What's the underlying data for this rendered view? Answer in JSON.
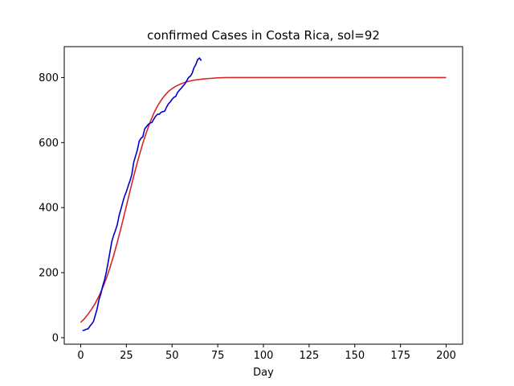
{
  "chart_data": {
    "type": "line",
    "title": "confirmed Cases in Costa Rica, sol=92",
    "xlabel": "Day",
    "ylabel": "",
    "xlim": [
      -9,
      209
    ],
    "ylim": [
      -20,
      895
    ],
    "xticks": [
      0,
      25,
      50,
      75,
      100,
      125,
      150,
      175,
      200
    ],
    "yticks": [
      0,
      200,
      400,
      600,
      800
    ],
    "grid": false,
    "series": [
      {
        "color": "#d62728",
        "x": [
          0,
          2,
          4,
          6,
          8,
          10,
          12,
          14,
          16,
          18,
          20,
          22,
          24,
          26,
          28,
          30,
          32,
          34,
          36,
          38,
          40,
          42,
          44,
          46,
          48,
          50,
          52,
          55,
          58,
          62,
          66,
          70,
          75,
          80,
          90,
          100,
          120,
          150,
          175,
          200
        ],
        "values": [
          47,
          58,
          72,
          88,
          106,
          128,
          153,
          182,
          215,
          252,
          293,
          336,
          382,
          428,
          474,
          518,
          559,
          598,
          632,
          663,
          690,
          712,
          730,
          745,
          757,
          766,
          773,
          781,
          787,
          792,
          795,
          797,
          799,
          800,
          800,
          800,
          800,
          800,
          800,
          800
        ]
      },
      {
        "color": "#0000cc",
        "x": [
          1,
          2,
          3,
          4,
          5,
          6,
          7,
          8,
          9,
          10,
          11,
          12,
          13,
          14,
          15,
          16,
          17,
          18,
          19,
          20,
          21,
          22,
          23,
          24,
          25,
          26,
          27,
          28,
          29,
          30,
          31,
          32,
          33,
          34,
          35,
          36,
          37,
          38,
          39,
          40,
          41,
          42,
          43,
          44,
          45,
          46,
          47,
          48,
          49,
          50,
          51,
          52,
          53,
          54,
          55,
          56,
          57,
          58,
          59,
          60,
          61,
          62,
          63,
          64,
          65,
          66
        ],
        "values": [
          22,
          23,
          26,
          27,
          35,
          42,
          50,
          69,
          89,
          117,
          134,
          158,
          177,
          201,
          231,
          263,
          295,
          314,
          330,
          347,
          375,
          395,
          416,
          435,
          449,
          467,
          483,
          502,
          539,
          558,
          577,
          604,
          613,
          618,
          642,
          649,
          656,
          660,
          662,
          672,
          681,
          687,
          687,
          693,
          695,
          697,
          709,
          719,
          725,
          733,
          739,
          742,
          754,
          761,
          767,
          774,
          780,
          790,
          800,
          804,
          813,
          830,
          840,
          855,
          860,
          852
        ]
      }
    ]
  }
}
